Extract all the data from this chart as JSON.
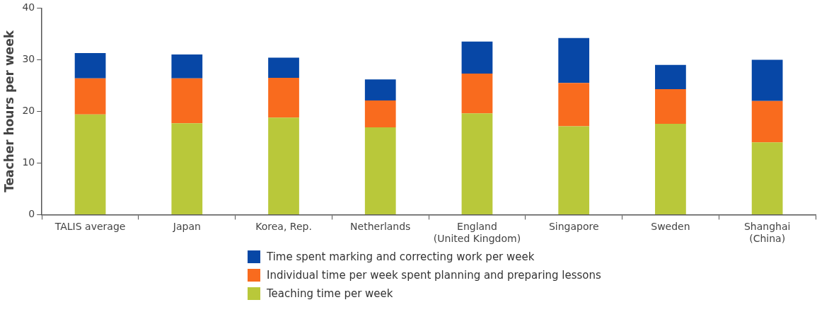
{
  "chart_data": {
    "type": "bar",
    "stacked": true,
    "ylabel": "Teacher hours per week",
    "categories": [
      "TALIS average",
      "Japan",
      "Korea, Rep.",
      "Netherlands",
      "England (United Kingdom)",
      "Singapore",
      "Sweden",
      "Shanghai (China)"
    ],
    "series": [
      {
        "name": "Teaching time per week",
        "color": "#b9c83a",
        "values": [
          19.4,
          17.7,
          18.8,
          16.9,
          19.6,
          17.1,
          17.6,
          14.0
        ]
      },
      {
        "name": "Individual time per week spent planning and preparing lessons",
        "color": "#f96b1e",
        "values": [
          7.0,
          8.7,
          7.7,
          5.2,
          7.7,
          8.4,
          6.7,
          8.0
        ]
      },
      {
        "name": "Time spent marking and correcting work per week",
        "color": "#0747a6",
        "values": [
          4.9,
          4.6,
          3.9,
          4.1,
          6.2,
          8.7,
          4.7,
          8.0
        ]
      }
    ],
    "ylim": [
      0,
      40
    ],
    "yticks": [
      0,
      10,
      20,
      30,
      40
    ],
    "grid": false,
    "legend": "bottom"
  }
}
